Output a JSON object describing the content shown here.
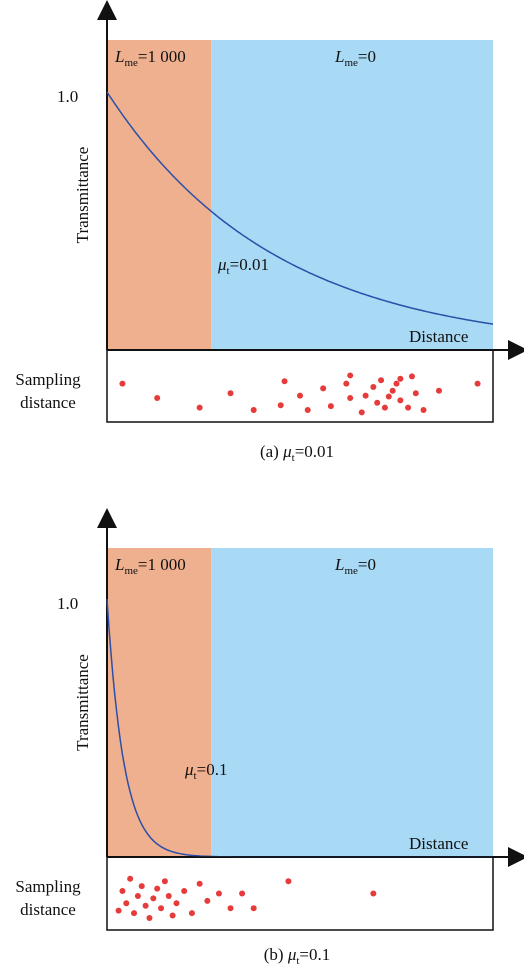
{
  "colors": {
    "region_left": "#efb08f",
    "region_right": "#a8d9f5",
    "curve": "#2b4fa8",
    "dots": "#e53b3b",
    "axis": "#111111"
  },
  "panels": [
    {
      "caption_prefix": "(a) ",
      "caption_mu": "μ",
      "caption_mu_sub": "t",
      "caption_value": "=0.01",
      "region_left_label": {
        "L": "L",
        "sub": "me",
        "value": "=1 000"
      },
      "region_right_label": {
        "L": "L",
        "sub": "me",
        "value": "=0"
      },
      "curve_label": {
        "mu": "μ",
        "sub": "t",
        "value": "=0.01"
      },
      "ytick": "1.0",
      "ylabel": "Transmittance",
      "xlabel": "Distance",
      "sampling_label_line1": "Sampling",
      "sampling_label_line2": "distance"
    },
    {
      "caption_prefix": "(b) ",
      "caption_mu": "μ",
      "caption_mu_sub": "t",
      "caption_value": "=0.1",
      "region_left_label": {
        "L": "L",
        "sub": "me",
        "value": "=1 000"
      },
      "region_right_label": {
        "L": "L",
        "sub": "me",
        "value": "=0"
      },
      "curve_label": {
        "mu": "μ",
        "sub": "t",
        "value": "=0.1"
      },
      "ytick": "1.0",
      "ylabel": "Transmittance",
      "xlabel": "Distance",
      "sampling_label_line1": "Sampling",
      "sampling_label_line2": "distance"
    }
  ],
  "chart_data": [
    {
      "type": "line",
      "mu_t": 0.01,
      "y_start": 1.0,
      "x_range": [
        0,
        100
      ],
      "region_boundary_fraction": 0.27,
      "curve_decay_per_width": 2.3,
      "sample_points": [
        [
          0.04,
          0.55
        ],
        [
          0.13,
          0.25
        ],
        [
          0.24,
          0.05
        ],
        [
          0.32,
          0.35
        ],
        [
          0.38,
          0.0
        ],
        [
          0.45,
          0.1
        ],
        [
          0.46,
          0.6
        ],
        [
          0.5,
          0.3
        ],
        [
          0.52,
          0.0
        ],
        [
          0.56,
          0.45
        ],
        [
          0.58,
          0.08
        ],
        [
          0.62,
          0.55
        ],
        [
          0.63,
          0.72
        ],
        [
          0.63,
          0.25
        ],
        [
          0.66,
          -0.05
        ],
        [
          0.67,
          0.3
        ],
        [
          0.69,
          0.48
        ],
        [
          0.7,
          0.15
        ],
        [
          0.71,
          0.62
        ],
        [
          0.72,
          0.05
        ],
        [
          0.73,
          0.28
        ],
        [
          0.74,
          0.4
        ],
        [
          0.75,
          0.55
        ],
        [
          0.76,
          0.2
        ],
        [
          0.76,
          0.65
        ],
        [
          0.78,
          0.05
        ],
        [
          0.79,
          0.7
        ],
        [
          0.8,
          0.35
        ],
        [
          0.82,
          0.0
        ],
        [
          0.86,
          0.4
        ],
        [
          0.96,
          0.55
        ]
      ]
    },
    {
      "type": "line",
      "mu_t": 0.1,
      "y_start": 1.0,
      "x_range": [
        0,
        100
      ],
      "region_boundary_fraction": 0.27,
      "curve_decay_per_width": 23,
      "sample_points": [
        [
          0.03,
          0.15
        ],
        [
          0.04,
          0.55
        ],
        [
          0.05,
          0.3
        ],
        [
          0.06,
          0.8
        ],
        [
          0.07,
          0.1
        ],
        [
          0.08,
          0.45
        ],
        [
          0.09,
          0.65
        ],
        [
          0.1,
          0.25
        ],
        [
          0.11,
          0.0
        ],
        [
          0.12,
          0.4
        ],
        [
          0.13,
          0.6
        ],
        [
          0.14,
          0.2
        ],
        [
          0.15,
          0.75
        ],
        [
          0.16,
          0.45
        ],
        [
          0.17,
          0.05
        ],
        [
          0.18,
          0.3
        ],
        [
          0.2,
          0.55
        ],
        [
          0.22,
          0.1
        ],
        [
          0.24,
          0.7
        ],
        [
          0.26,
          0.35
        ],
        [
          0.29,
          0.5
        ],
        [
          0.32,
          0.2
        ],
        [
          0.35,
          0.5
        ],
        [
          0.38,
          0.2
        ],
        [
          0.47,
          0.75
        ],
        [
          0.69,
          0.5
        ]
      ]
    }
  ]
}
